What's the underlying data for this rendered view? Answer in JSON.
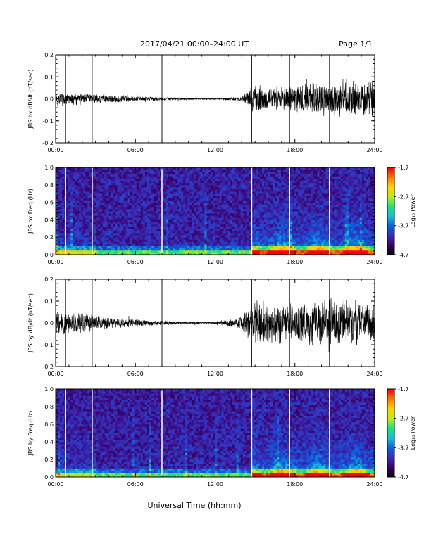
{
  "header": {
    "title": "2017/04/21  00:00–24:00 UT",
    "page": "Page 1/1"
  },
  "footer": {
    "xlabel": "Universal Time (hh:mm)"
  },
  "colors": {
    "trace": "#000000",
    "markers": "#ffffff",
    "colormap": [
      "#000000",
      "#3c0064",
      "#3a2ab8",
      "#0b5fe0",
      "#12c0d8",
      "#1fe07a",
      "#b8ee14",
      "#ffd400",
      "#ff7a00",
      "#ff0000"
    ]
  },
  "chart_data": [
    {
      "type": "line",
      "ylabel": "JBS bx dB/dt (nT/sec)",
      "xlim": [
        0,
        24
      ],
      "ylim": [
        -0.2,
        0.2
      ],
      "x_ticks": [
        "00:00",
        "06:00",
        "12:00",
        "18:00",
        "24:00"
      ],
      "y_ticks": [
        "-0.2",
        "-0.1",
        "0.0",
        "0.1",
        "0.2"
      ],
      "y_tick_values": [
        -0.2,
        -0.1,
        0.0,
        0.1,
        0.2
      ],
      "event_lines_hours": [
        0.75,
        2.75,
        8.0,
        14.75,
        17.6,
        20.6
      ],
      "envelope": {
        "hours": [
          0,
          2,
          4,
          6,
          8,
          10,
          12,
          14,
          14.75,
          15,
          16,
          17,
          18,
          19,
          20,
          21,
          22,
          23,
          24
        ],
        "amplitude": [
          0.04,
          0.03,
          0.02,
          0.015,
          0.008,
          0.005,
          0.004,
          0.01,
          0.06,
          0.08,
          0.06,
          0.06,
          0.07,
          0.08,
          0.09,
          0.09,
          0.1,
          0.09,
          0.09
        ]
      },
      "series": [
        {
          "values": []
        }
      ]
    },
    {
      "type": "heatmap",
      "ylabel": "JBS bx Freq (Hz)",
      "xlim": [
        0,
        24
      ],
      "ylim": [
        0,
        1.0
      ],
      "x_ticks": [
        "00:00",
        "06:00",
        "12:00",
        "18:00",
        "24:00"
      ],
      "y_ticks": [
        "0.0",
        "0.2",
        "0.4",
        "0.6",
        "0.8",
        "1.0"
      ],
      "y_tick_values": [
        0,
        0.2,
        0.4,
        0.6,
        0.8,
        1.0
      ],
      "event_lines_hours": [
        0.75,
        2.75,
        8.0,
        14.75,
        17.6,
        20.6
      ],
      "colorbar": {
        "label": "Log₁₀ Power",
        "range": [
          -4.7,
          -1.7
        ],
        "ticks": [
          "-1.7",
          "-2.7",
          "-3.7",
          "-4.7"
        ],
        "tick_values": [
          -1.7,
          -2.7,
          -3.7,
          -4.7
        ]
      }
    },
    {
      "type": "line",
      "ylabel": "JBS by dB/dt (nT/sec)",
      "xlim": [
        0,
        24
      ],
      "ylim": [
        -0.2,
        0.2
      ],
      "x_ticks": [
        "00:00",
        "06:00",
        "12:00",
        "18:00",
        "24:00"
      ],
      "y_ticks": [
        "-0.2",
        "-0.1",
        "0.0",
        "0.1",
        "0.2"
      ],
      "y_tick_values": [
        -0.2,
        -0.1,
        0.0,
        0.1,
        0.2
      ],
      "event_lines_hours": [
        0.75,
        2.75,
        8.0,
        14.75,
        17.6,
        20.6
      ],
      "envelope": {
        "hours": [
          0,
          2,
          4,
          6,
          8,
          10,
          12,
          14,
          14.75,
          15,
          16,
          17,
          18,
          19,
          20,
          21,
          22,
          23,
          24
        ],
        "amplitude": [
          0.06,
          0.05,
          0.03,
          0.02,
          0.012,
          0.008,
          0.006,
          0.03,
          0.1,
          0.12,
          0.11,
          0.1,
          0.1,
          0.11,
          0.12,
          0.13,
          0.12,
          0.11,
          0.1
        ]
      },
      "series": [
        {
          "values": []
        }
      ]
    },
    {
      "type": "heatmap",
      "ylabel": "JBS by Freq (Hz)",
      "xlim": [
        0,
        24
      ],
      "ylim": [
        0,
        1.0
      ],
      "x_ticks": [
        "00:00",
        "06:00",
        "12:00",
        "18:00",
        "24:00"
      ],
      "y_ticks": [
        "0.0",
        "0.2",
        "0.4",
        "0.6",
        "0.8",
        "1.0"
      ],
      "y_tick_values": [
        0,
        0.2,
        0.4,
        0.6,
        0.8,
        1.0
      ],
      "event_lines_hours": [
        0.75,
        2.75,
        8.0,
        14.75,
        17.6,
        20.6
      ],
      "colorbar": {
        "label": "Log₁₀ Power",
        "range": [
          -4.7,
          -1.7
        ],
        "ticks": [
          "-1.7",
          "-2.7",
          "-3.7",
          "-4.7"
        ],
        "tick_values": [
          -1.7,
          -2.7,
          -3.7,
          -4.7
        ]
      }
    }
  ]
}
